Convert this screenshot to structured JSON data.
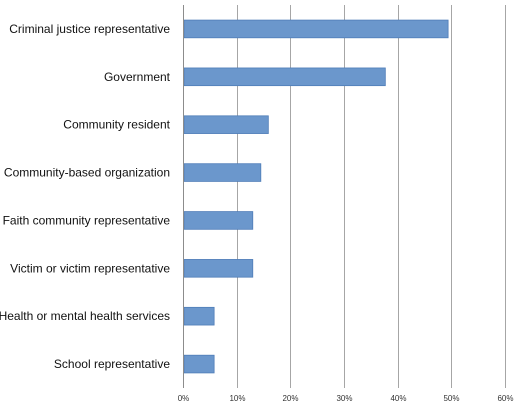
{
  "chart_data": {
    "type": "bar",
    "orientation": "horizontal",
    "categories": [
      "Criminal justice representative",
      "Government",
      "Community resident",
      "Community-based organization",
      "Faith community representative",
      "Victim or victim representative",
      "Health or mental health services",
      "School representative"
    ],
    "values": [
      49.4,
      37.7,
      15.9,
      14.5,
      13.0,
      13.0,
      5.8,
      5.8
    ],
    "xlim": [
      0,
      60
    ],
    "ticks": [
      0,
      10,
      20,
      30,
      40,
      50,
      60
    ],
    "tick_labels": [
      "0%",
      "10%",
      "20%",
      "30%",
      "40%",
      "50%",
      "60%"
    ],
    "title": "",
    "xlabel": "",
    "ylabel": "",
    "grid": "vertical",
    "legend": "none",
    "bar_color": "#6b97cc",
    "bar_edge_color": "#4f7db8"
  }
}
